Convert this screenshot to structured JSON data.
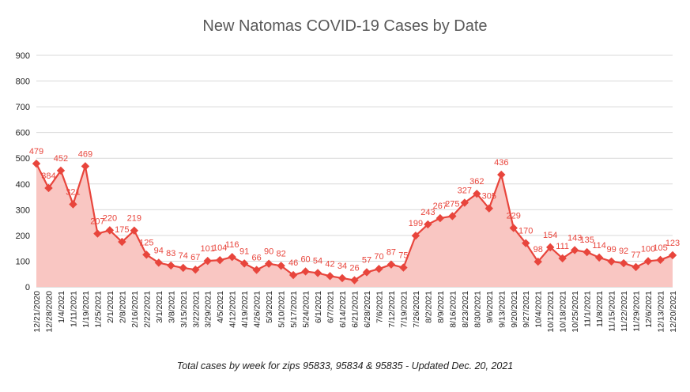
{
  "chart_data": {
    "type": "area",
    "title": "New Natomas COVID-19 Cases by Date",
    "caption": "Total cases by week for zips 95833, 95834 & 95835 - Updated Dec. 20, 2021",
    "xlabel": "",
    "ylabel": "",
    "ylim": [
      0,
      900
    ],
    "yticks": [
      0,
      100,
      200,
      300,
      400,
      500,
      600,
      700,
      800,
      900
    ],
    "grid": true,
    "legend": "none",
    "colors": {
      "line": "#e8453c",
      "fill": "#f9c6c2",
      "label": "#e8453c",
      "grid": "#d9d9d9",
      "axis_text": "#222222"
    },
    "categories": [
      "12/21/2020",
      "12/28/2020",
      "1/4/2021",
      "1/11/2021",
      "1/19/2021",
      "1/25/2021",
      "2/1/2021",
      "2/8/2021",
      "2/16/2021",
      "2/22/2021",
      "3/1/2021",
      "3/8/2021",
      "3/15/2021",
      "3/22/2021",
      "3/29/2021",
      "4/5/2021",
      "4/12/2021",
      "4/19/2021",
      "4/26/2021",
      "5/3/2021",
      "5/10/2021",
      "5/17/2021",
      "5/24/2021",
      "6/1/2021",
      "6/7/2021",
      "6/14/2021",
      "6/21/2021",
      "6/28/2021",
      "7/6/2021",
      "7/12/2021",
      "7/19/2021",
      "7/26/2021",
      "8/2/2021",
      "8/9/2021",
      "8/16/2021",
      "8/23/2021",
      "8/30/2021",
      "9/6/2021",
      "9/13/2021",
      "9/20/2021",
      "9/27/2021",
      "10/4/2021",
      "10/12/2021",
      "10/18/2021",
      "10/25/2021",
      "11/1/2021",
      "11/8/2021",
      "11/15/2021",
      "11/22/2021",
      "11/29/2021",
      "12/6/2021",
      "12/13/2021",
      "12/20/2021"
    ],
    "values": [
      479,
      384,
      452,
      321,
      469,
      207,
      220,
      175,
      219,
      125,
      94,
      83,
      74,
      67,
      101,
      104,
      116,
      91,
      66,
      90,
      82,
      46,
      60,
      54,
      42,
      34,
      26,
      57,
      70,
      87,
      75,
      199,
      243,
      267,
      275,
      327,
      362,
      305,
      436,
      229,
      170,
      98,
      154,
      111,
      143,
      135,
      114,
      99,
      92,
      77,
      100,
      105,
      123
    ]
  }
}
